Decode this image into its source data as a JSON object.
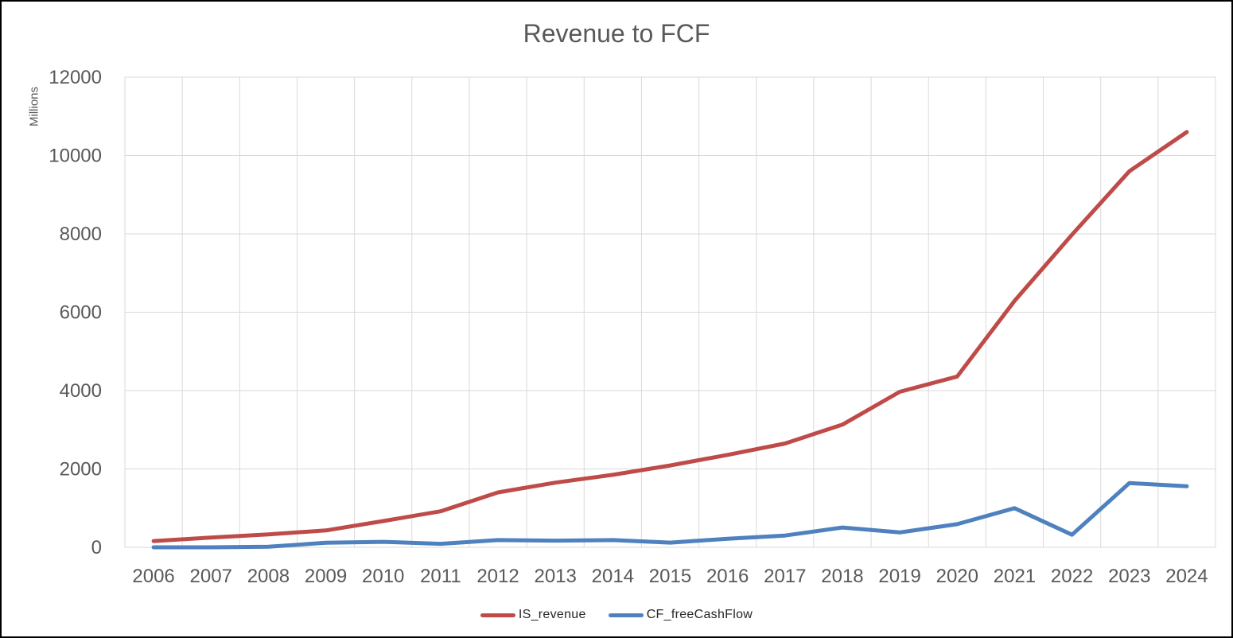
{
  "window": {
    "background": "#ffffff",
    "border_color": "#000000"
  },
  "chart_data": {
    "type": "line",
    "title": "Revenue to FCF",
    "y_axis_title": "Millions",
    "xlabel": "",
    "ylabel": "Millions",
    "categories": [
      "2006",
      "2007",
      "2008",
      "2009",
      "2010",
      "2011",
      "2012",
      "2013",
      "2014",
      "2015",
      "2016",
      "2017",
      "2018",
      "2019",
      "2020",
      "2021",
      "2022",
      "2023",
      "2024"
    ],
    "series": [
      {
        "name": "IS_revenue",
        "color": "#be4b48",
        "values": [
          160,
          250,
          330,
          430,
          670,
          920,
          1400,
          1650,
          1850,
          2090,
          2360,
          2650,
          3130,
          3970,
          4360,
          6290,
          7980,
          9600,
          10600
        ]
      },
      {
        "name": "CF_freeCashFlow",
        "color": "#4e81bd",
        "values": [
          0,
          0,
          15,
          115,
          140,
          90,
          185,
          170,
          185,
          120,
          220,
          300,
          505,
          380,
          590,
          1000,
          320,
          1640,
          1560
        ]
      }
    ],
    "ylim": [
      0,
      12000
    ],
    "y_ticks": [
      0,
      2000,
      4000,
      6000,
      8000,
      10000,
      12000
    ],
    "grid": true,
    "legend_position": "bottom",
    "colors": {
      "axis_text": "#595959",
      "title_text": "#595959",
      "gridline": "#d9d9d9",
      "legend_text": "#262626"
    }
  }
}
